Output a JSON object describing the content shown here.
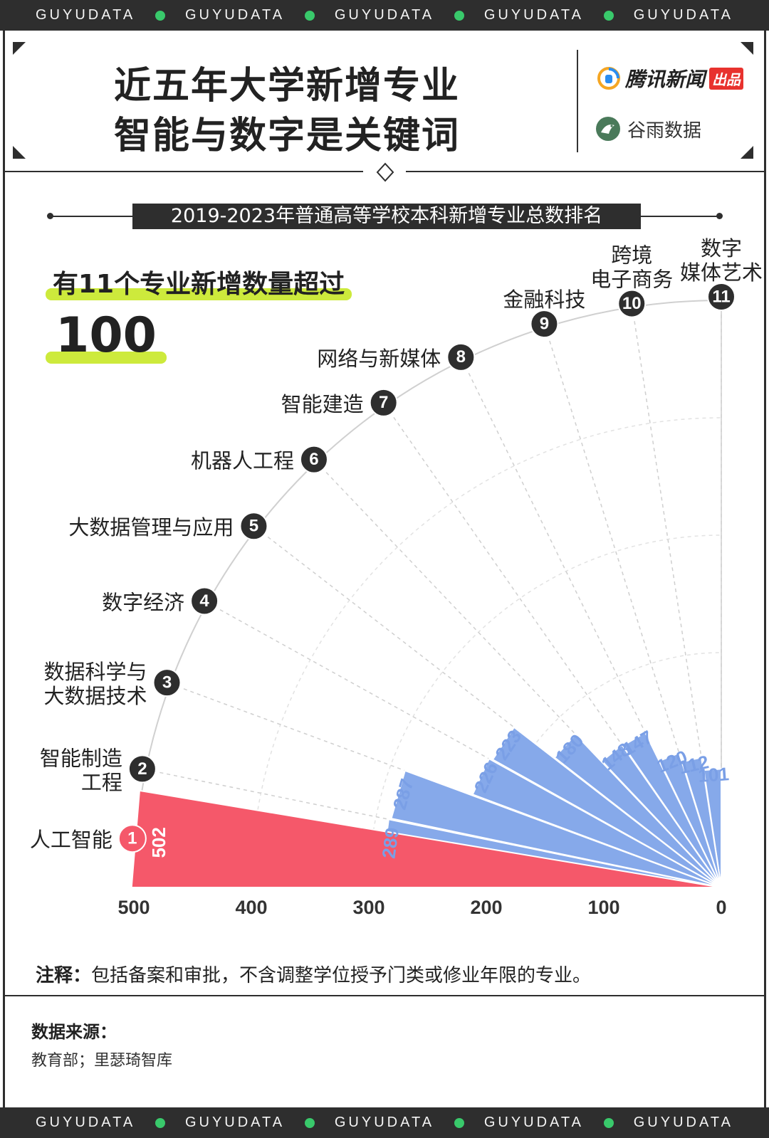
{
  "band_text": "GUYUDATA",
  "header": {
    "title_line1": "近五年大学新增专业",
    "title_line2": "智能与数字是关键词",
    "brand_tencent": "腾讯新闻",
    "brand_tencent_tag": "出品",
    "brand_guyu": "谷雨数据"
  },
  "subtitle": "2019-2023年普通高等学校本科新增专业总数排名",
  "callout": {
    "text": "有11个专业新增数量超过",
    "number": "100"
  },
  "note": {
    "label": "注释：",
    "text": "包括备案和审批，不含调整学位授予门类或修业年限的专业。"
  },
  "source": {
    "label": "数据来源：",
    "text": "教育部；里瑟琦智库"
  },
  "colors": {
    "top": "#f5586a",
    "rest": "#86a9ea",
    "dark": "#2e2e2e",
    "highlight": "#cdea3c",
    "green_dot": "#39c96b"
  },
  "chart_data": {
    "type": "radial-bar",
    "title": "2019-2023年普通高等学校本科新增专业总数排名",
    "axis_ticks": [
      500,
      400,
      300,
      200,
      100,
      0
    ],
    "xlim": [
      0,
      500
    ],
    "rank_labels": [
      "1",
      "2",
      "3",
      "4",
      "5",
      "6",
      "7",
      "8",
      "9",
      "10",
      "11"
    ],
    "categories": [
      [
        "人工智能"
      ],
      [
        "智能制造",
        "工程"
      ],
      [
        "数据科学与",
        "大数据技术"
      ],
      [
        "数字经济"
      ],
      [
        "大数据管理与应用"
      ],
      [
        "机器人工程"
      ],
      [
        "智能建造"
      ],
      [
        "网络与新媒体"
      ],
      [
        "金融科技"
      ],
      [
        "跨境",
        "电子商务"
      ],
      [
        "数字",
        "媒体艺术"
      ]
    ],
    "values": [
      502,
      289,
      287,
      226,
      223,
      180,
      148,
      147,
      120,
      112,
      101
    ],
    "value_labels": [
      "502",
      "289",
      "287",
      "226",
      "223",
      "180",
      "148",
      "147",
      "120",
      "112",
      "101"
    ]
  }
}
